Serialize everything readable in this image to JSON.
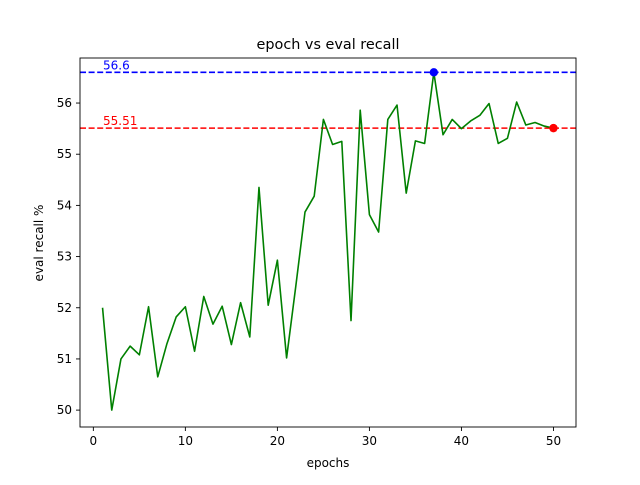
{
  "chart_data": {
    "type": "line",
    "title": "epoch vs eval recall",
    "xlabel": "epochs",
    "ylabel": "eval recall %",
    "xlim": [
      -1.45,
      52.45
    ],
    "ylim": [
      49.67,
      56.88
    ],
    "xticks": [
      0,
      10,
      20,
      30,
      40,
      50
    ],
    "yticks": [
      50,
      51,
      52,
      53,
      54,
      55,
      56
    ],
    "grid": false,
    "series": [
      {
        "color": "#008000",
        "x": [
          1,
          2,
          3,
          4,
          5,
          6,
          7,
          8,
          9,
          10,
          11,
          12,
          13,
          14,
          15,
          16,
          17,
          18,
          19,
          20,
          21,
          22,
          23,
          24,
          25,
          26,
          27,
          28,
          29,
          30,
          31,
          32,
          33,
          34,
          35,
          36,
          37,
          38,
          39,
          40,
          41,
          42,
          43,
          44,
          45,
          46,
          47,
          48,
          49,
          50
        ],
        "y": [
          52.0,
          50.0,
          51.0,
          51.25,
          51.08,
          52.02,
          50.65,
          51.3,
          51.82,
          52.02,
          51.15,
          52.22,
          51.68,
          52.03,
          51.28,
          52.1,
          51.43,
          54.35,
          52.05,
          52.93,
          51.02,
          52.42,
          53.87,
          54.18,
          55.68,
          55.19,
          55.25,
          51.75,
          55.86,
          53.82,
          53.48,
          55.68,
          55.96,
          54.24,
          55.26,
          55.21,
          56.6,
          55.38,
          55.68,
          55.5,
          55.65,
          55.76,
          55.99,
          55.21,
          55.31,
          56.02,
          55.57,
          55.62,
          55.55,
          55.51
        ]
      }
    ],
    "reference_lines": [
      {
        "value": 56.6,
        "label": "56.6",
        "color": "#0000ff",
        "style": "dashed"
      },
      {
        "value": 55.51,
        "label": "55.51",
        "color": "#ff0000",
        "style": "dashed"
      }
    ],
    "markers": [
      {
        "x": 37,
        "y": 56.6,
        "color": "#0000ff"
      },
      {
        "x": 50,
        "y": 55.51,
        "color": "#ff0000"
      }
    ]
  }
}
